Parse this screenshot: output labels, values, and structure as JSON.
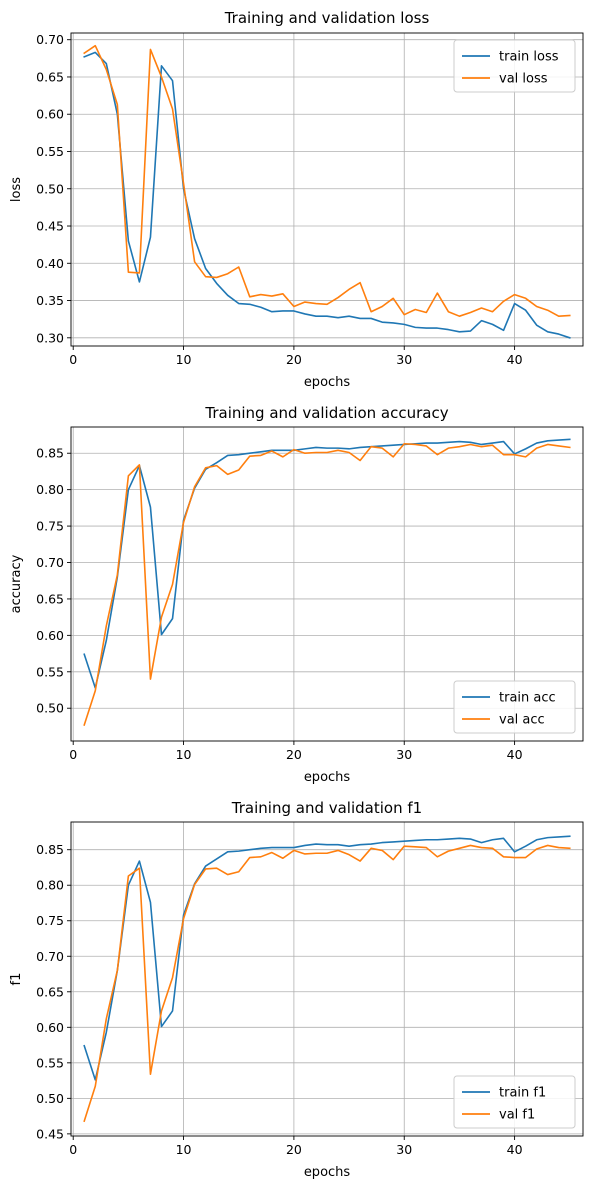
{
  "chart_data": [
    {
      "type": "line",
      "title": "Training and validation loss",
      "xlabel": "epochs",
      "ylabel": "loss",
      "xlim": [
        -0.2,
        46.2
      ],
      "ylim": [
        0.289,
        0.709
      ],
      "xticks": [
        0,
        10,
        20,
        30,
        40
      ],
      "yticks": [
        0.3,
        0.35,
        0.4,
        0.45,
        0.5,
        0.55,
        0.6,
        0.65,
        0.7
      ],
      "tick_decimals": 2,
      "grid": true,
      "legend_position": "top-right",
      "x": [
        1,
        2,
        3,
        4,
        5,
        6,
        7,
        8,
        9,
        10,
        11,
        12,
        13,
        14,
        15,
        16,
        17,
        18,
        19,
        20,
        21,
        22,
        23,
        24,
        25,
        26,
        27,
        28,
        29,
        30,
        31,
        32,
        33,
        34,
        35,
        36,
        37,
        38,
        39,
        40,
        41,
        42,
        43,
        44,
        45
      ],
      "series": [
        {
          "name": "train loss",
          "color": "#1f77b4",
          "values": [
            0.677,
            0.683,
            0.668,
            0.6,
            0.43,
            0.375,
            0.435,
            0.665,
            0.645,
            0.5,
            0.433,
            0.393,
            0.373,
            0.357,
            0.346,
            0.345,
            0.341,
            0.335,
            0.336,
            0.336,
            0.332,
            0.329,
            0.329,
            0.327,
            0.329,
            0.326,
            0.326,
            0.321,
            0.32,
            0.318,
            0.314,
            0.313,
            0.313,
            0.311,
            0.308,
            0.309,
            0.323,
            0.318,
            0.31,
            0.346,
            0.337,
            0.317,
            0.308,
            0.305,
            0.3
          ]
        },
        {
          "name": "val loss",
          "color": "#ff7f0e",
          "values": [
            0.682,
            0.692,
            0.66,
            0.613,
            0.388,
            0.387,
            0.687,
            0.65,
            0.607,
            0.507,
            0.402,
            0.382,
            0.381,
            0.386,
            0.395,
            0.355,
            0.358,
            0.356,
            0.359,
            0.342,
            0.348,
            0.346,
            0.345,
            0.354,
            0.365,
            0.374,
            0.335,
            0.342,
            0.353,
            0.331,
            0.338,
            0.334,
            0.36,
            0.335,
            0.329,
            0.334,
            0.34,
            0.335,
            0.349,
            0.358,
            0.353,
            0.342,
            0.337,
            0.329,
            0.33
          ]
        }
      ]
    },
    {
      "type": "line",
      "title": "Training and validation accuracy",
      "xlabel": "epochs",
      "ylabel": "accuracy",
      "xlim": [
        -0.2,
        46.2
      ],
      "ylim": [
        0.455,
        0.886
      ],
      "xticks": [
        0,
        10,
        20,
        30,
        40
      ],
      "yticks": [
        0.5,
        0.55,
        0.6,
        0.65,
        0.7,
        0.75,
        0.8,
        0.85
      ],
      "tick_decimals": 2,
      "grid": true,
      "legend_position": "bottom-right",
      "x": [
        1,
        2,
        3,
        4,
        5,
        6,
        7,
        8,
        9,
        10,
        11,
        12,
        13,
        14,
        15,
        16,
        17,
        18,
        19,
        20,
        21,
        22,
        23,
        24,
        25,
        26,
        27,
        28,
        29,
        30,
        31,
        32,
        33,
        34,
        35,
        36,
        37,
        38,
        39,
        40,
        41,
        42,
        43,
        44,
        45
      ],
      "series": [
        {
          "name": "train acc",
          "color": "#1f77b4",
          "values": [
            0.574,
            0.528,
            0.593,
            0.68,
            0.8,
            0.833,
            0.776,
            0.601,
            0.623,
            0.758,
            0.802,
            0.828,
            0.837,
            0.847,
            0.848,
            0.85,
            0.852,
            0.854,
            0.854,
            0.854,
            0.856,
            0.858,
            0.857,
            0.857,
            0.856,
            0.858,
            0.859,
            0.86,
            0.861,
            0.862,
            0.863,
            0.864,
            0.864,
            0.865,
            0.866,
            0.865,
            0.862,
            0.864,
            0.866,
            0.849,
            0.856,
            0.864,
            0.867,
            0.868,
            0.869
          ]
        },
        {
          "name": "val acc",
          "color": "#ff7f0e",
          "values": [
            0.477,
            0.524,
            0.613,
            0.683,
            0.819,
            0.834,
            0.54,
            0.625,
            0.67,
            0.755,
            0.804,
            0.83,
            0.833,
            0.821,
            0.827,
            0.846,
            0.847,
            0.853,
            0.845,
            0.855,
            0.85,
            0.851,
            0.851,
            0.854,
            0.851,
            0.84,
            0.859,
            0.857,
            0.845,
            0.863,
            0.862,
            0.86,
            0.848,
            0.857,
            0.859,
            0.862,
            0.859,
            0.861,
            0.848,
            0.848,
            0.845,
            0.857,
            0.862,
            0.86,
            0.858
          ]
        }
      ]
    },
    {
      "type": "line",
      "title": "Training and validation f1",
      "xlabel": "epochs",
      "ylabel": "f1",
      "xlim": [
        -0.2,
        46.2
      ],
      "ylim": [
        0.447,
        0.889
      ],
      "xticks": [
        0,
        10,
        20,
        30,
        40
      ],
      "yticks": [
        0.45,
        0.5,
        0.55,
        0.6,
        0.65,
        0.7,
        0.75,
        0.8,
        0.85
      ],
      "tick_decimals": 2,
      "grid": true,
      "legend_position": "bottom-right",
      "x": [
        1,
        2,
        3,
        4,
        5,
        6,
        7,
        8,
        9,
        10,
        11,
        12,
        13,
        14,
        15,
        16,
        17,
        18,
        19,
        20,
        21,
        22,
        23,
        24,
        25,
        26,
        27,
        28,
        29,
        30,
        31,
        32,
        33,
        34,
        35,
        36,
        37,
        38,
        39,
        40,
        41,
        42,
        43,
        44,
        45
      ],
      "series": [
        {
          "name": "train f1",
          "color": "#1f77b4",
          "values": [
            0.574,
            0.526,
            0.593,
            0.68,
            0.8,
            0.834,
            0.776,
            0.601,
            0.623,
            0.758,
            0.802,
            0.827,
            0.837,
            0.847,
            0.848,
            0.85,
            0.852,
            0.853,
            0.853,
            0.853,
            0.856,
            0.858,
            0.857,
            0.857,
            0.855,
            0.857,
            0.858,
            0.86,
            0.861,
            0.862,
            0.863,
            0.864,
            0.864,
            0.865,
            0.866,
            0.865,
            0.86,
            0.864,
            0.866,
            0.847,
            0.855,
            0.864,
            0.867,
            0.868,
            0.869
          ]
        },
        {
          "name": "val f1",
          "color": "#ff7f0e",
          "values": [
            0.468,
            0.517,
            0.612,
            0.68,
            0.813,
            0.824,
            0.534,
            0.623,
            0.67,
            0.753,
            0.801,
            0.823,
            0.824,
            0.815,
            0.819,
            0.839,
            0.84,
            0.846,
            0.838,
            0.849,
            0.844,
            0.845,
            0.845,
            0.849,
            0.843,
            0.834,
            0.852,
            0.849,
            0.836,
            0.855,
            0.854,
            0.853,
            0.84,
            0.848,
            0.852,
            0.856,
            0.853,
            0.852,
            0.84,
            0.839,
            0.839,
            0.851,
            0.856,
            0.853,
            0.852
          ]
        }
      ]
    }
  ]
}
